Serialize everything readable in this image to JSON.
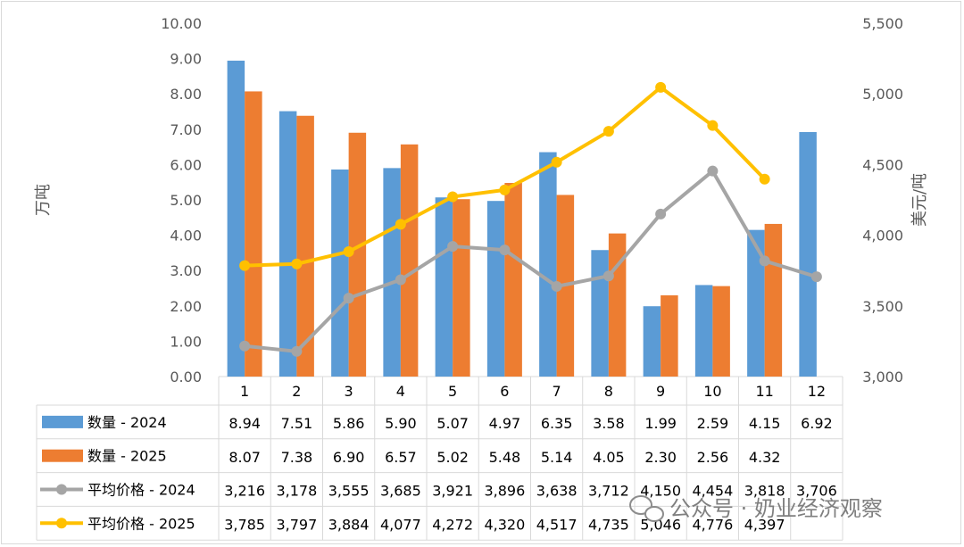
{
  "chart_data": {
    "type": "bar",
    "categories": [
      "1",
      "2",
      "3",
      "4",
      "5",
      "6",
      "7",
      "8",
      "9",
      "10",
      "11",
      "12"
    ],
    "ylabel": "万吨",
    "y2label": "美元/吨",
    "ylim": [
      0,
      10
    ],
    "y2lim": [
      3000,
      5500
    ],
    "yticks": [
      "0.00",
      "1.00",
      "2.00",
      "3.00",
      "4.00",
      "5.00",
      "6.00",
      "7.00",
      "8.00",
      "9.00",
      "10.00"
    ],
    "y2ticks": [
      "3,000",
      "3,500",
      "4,000",
      "4,500",
      "5,000",
      "5,500"
    ],
    "grid": false,
    "legend": "data-table",
    "series": [
      {
        "name": "数量 - 2024",
        "kind": "bar",
        "axis": "left",
        "color": "#5b9bd5",
        "values": [
          8.94,
          7.51,
          5.86,
          5.9,
          5.07,
          4.97,
          6.35,
          3.58,
          1.99,
          2.59,
          4.15,
          6.92
        ],
        "labels": [
          "8.94",
          "7.51",
          "5.86",
          "5.90",
          "5.07",
          "4.97",
          "6.35",
          "3.58",
          "1.99",
          "2.59",
          "4.15",
          "6.92"
        ]
      },
      {
        "name": "数量 - 2025",
        "kind": "bar",
        "axis": "left",
        "color": "#ed7d31",
        "values": [
          8.07,
          7.38,
          6.9,
          6.57,
          5.02,
          5.48,
          5.14,
          4.05,
          2.3,
          2.56,
          4.32,
          null
        ],
        "labels": [
          "8.07",
          "7.38",
          "6.90",
          "6.57",
          "5.02",
          "5.48",
          "5.14",
          "4.05",
          "2.30",
          "2.56",
          "4.32",
          ""
        ]
      },
      {
        "name": "平均价格 - 2024",
        "kind": "line",
        "axis": "right",
        "color": "#a5a5a5",
        "values": [
          3216,
          3178,
          3555,
          3685,
          3921,
          3896,
          3638,
          3712,
          4150,
          4454,
          3818,
          3706
        ],
        "labels": [
          "3,216",
          "3,178",
          "3,555",
          "3,685",
          "3,921",
          "3,896",
          "3,638",
          "3,712",
          "4,150",
          "4,454",
          "3,818",
          "3,706"
        ]
      },
      {
        "name": "平均价格 - 2025",
        "kind": "line",
        "axis": "right",
        "color": "#ffc000",
        "values": [
          3785,
          3797,
          3884,
          4077,
          4272,
          4320,
          4517,
          4735,
          5046,
          4776,
          4397,
          null
        ],
        "labels": [
          "3,785",
          "3,797",
          "3,884",
          "4,077",
          "4,272",
          "4,320",
          "4,517",
          "4,735",
          "5,046",
          "4,776",
          "4,397",
          ""
        ]
      }
    ]
  },
  "watermark": "公众号 · 奶业经济观察"
}
